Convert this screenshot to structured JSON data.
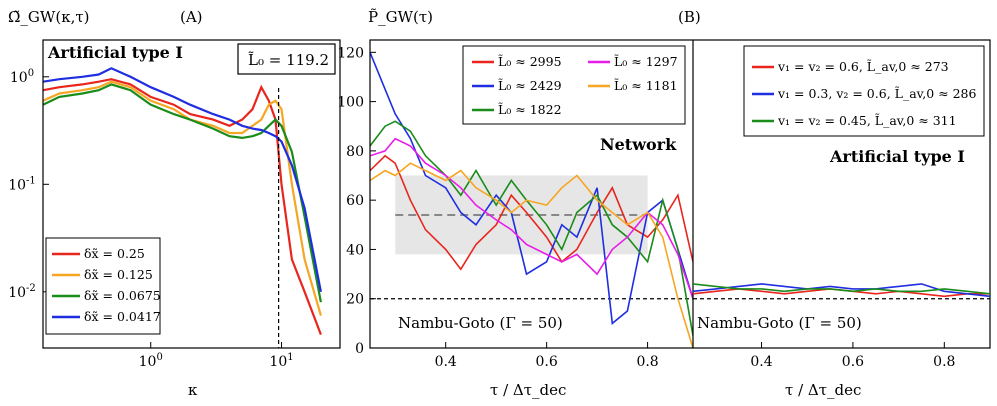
{
  "chart_data": [
    {
      "type": "line",
      "panel_label": "(A)",
      "ylabel": "Ω̃_GW(κ,τ)",
      "xlabel": "κ",
      "title_box": "L̃₀ = 119.2",
      "annotation": "Artificial type I",
      "xscale": "log",
      "yscale": "log",
      "xlim": [
        0.15,
        28
      ],
      "ylim": [
        0.003,
        2.2
      ],
      "x_ticks": [
        {
          "v": 1,
          "label": "10^0"
        },
        {
          "v": 10,
          "label": "10^1"
        }
      ],
      "y_ticks": [
        {
          "v": 0.01,
          "label": "10^-2"
        },
        {
          "v": 0.1,
          "label": "10^-1"
        },
        {
          "v": 1,
          "label": "10^0"
        }
      ],
      "vline_x": 9.5,
      "series": [
        {
          "name": "δx̃ = 0.25",
          "color": "#e8261e",
          "x": [
            0.15,
            0.2,
            0.3,
            0.4,
            0.5,
            0.7,
            1,
            1.5,
            2,
            3,
            4,
            5,
            6,
            7,
            8,
            9,
            10,
            12,
            15,
            20
          ],
          "envelope_top": [
            0.75,
            0.8,
            0.85,
            0.9,
            0.95,
            0.85,
            0.65,
            0.55,
            0.45,
            0.4,
            0.35,
            0.4,
            0.5,
            0.8,
            0.6,
            0.4,
            0.1,
            0.02,
            0.01,
            0.004
          ],
          "values": [
            0.75,
            0.8,
            0.85,
            0.9,
            0.95,
            0.85,
            0.65,
            0.55,
            0.45,
            0.4,
            0.35,
            0.4,
            0.5,
            0.8,
            0.6,
            0.4,
            0.1,
            0.02,
            0.01,
            0.004
          ]
        },
        {
          "name": "δx̃ = 0.125",
          "color": "#f5a623",
          "x": [
            0.15,
            0.2,
            0.3,
            0.4,
            0.5,
            0.7,
            1,
            1.5,
            2,
            3,
            4,
            5,
            6,
            7,
            8,
            9,
            10,
            12,
            15,
            20
          ],
          "values": [
            0.6,
            0.7,
            0.75,
            0.8,
            0.9,
            0.8,
            0.6,
            0.5,
            0.4,
            0.35,
            0.3,
            0.3,
            0.35,
            0.4,
            0.55,
            0.6,
            0.5,
            0.1,
            0.02,
            0.006
          ]
        },
        {
          "name": "δx̃ = 0.0675",
          "color": "#1a8c1a",
          "x": [
            0.15,
            0.2,
            0.3,
            0.4,
            0.5,
            0.7,
            1,
            1.5,
            2,
            3,
            4,
            5,
            6,
            7,
            8,
            9,
            10,
            12,
            15,
            20
          ],
          "values": [
            0.55,
            0.65,
            0.7,
            0.75,
            0.85,
            0.75,
            0.55,
            0.45,
            0.4,
            0.33,
            0.28,
            0.27,
            0.28,
            0.3,
            0.35,
            0.4,
            0.35,
            0.2,
            0.05,
            0.008
          ]
        },
        {
          "name": "δx̃ = 0.0417",
          "color": "#1f2ee0",
          "x": [
            0.15,
            0.2,
            0.3,
            0.4,
            0.5,
            0.7,
            1,
            1.5,
            2,
            3,
            4,
            5,
            6,
            7,
            8,
            9,
            10,
            12,
            15,
            20
          ],
          "values": [
            0.9,
            0.95,
            1.0,
            1.05,
            1.2,
            1.0,
            0.8,
            0.65,
            0.55,
            0.45,
            0.4,
            0.35,
            0.33,
            0.32,
            0.3,
            0.28,
            0.25,
            0.15,
            0.06,
            0.01
          ]
        }
      ]
    },
    {
      "type": "line",
      "panel_label": "(B)",
      "ylabel": "P̃_GW(τ)",
      "xlabel": "τ / Δτ_dec",
      "annotation": "Network",
      "xlim": [
        0.25,
        0.89
      ],
      "ylim": [
        0,
        125
      ],
      "x_ticks": [
        0.4,
        0.6,
        0.8
      ],
      "y_ticks": [
        0,
        20,
        40,
        60,
        80,
        100,
        120
      ],
      "hline": {
        "y": 20,
        "label": "Nambu-Goto (Γ = 50)"
      },
      "band": {
        "x": [
          0.3,
          0.8
        ],
        "y": [
          38,
          70
        ],
        "mean": 54
      },
      "series": [
        {
          "name": "L̃₀ ≈ 2995",
          "color": "#e8261e",
          "x": [
            0.25,
            0.28,
            0.3,
            0.33,
            0.36,
            0.4,
            0.43,
            0.46,
            0.5,
            0.53,
            0.56,
            0.6,
            0.63,
            0.66,
            0.7,
            0.73,
            0.76,
            0.8,
            0.83,
            0.86,
            0.89
          ],
          "values": [
            72,
            78,
            75,
            60,
            48,
            40,
            32,
            42,
            50,
            62,
            55,
            45,
            35,
            40,
            55,
            65,
            50,
            45,
            52,
            62,
            35
          ]
        },
        {
          "name": "L̃₀ ≈ 2429",
          "color": "#1f2ee0",
          "x": [
            0.25,
            0.28,
            0.3,
            0.33,
            0.36,
            0.4,
            0.43,
            0.46,
            0.5,
            0.53,
            0.56,
            0.6,
            0.63,
            0.66,
            0.7,
            0.73,
            0.76,
            0.8,
            0.83,
            0.86,
            0.89
          ],
          "values": [
            120,
            105,
            95,
            85,
            70,
            65,
            55,
            50,
            62,
            55,
            30,
            35,
            50,
            45,
            65,
            10,
            15,
            55,
            60,
            40,
            20
          ]
        },
        {
          "name": "L̃₀ ≈ 1822",
          "color": "#1a8c1a",
          "x": [
            0.25,
            0.28,
            0.3,
            0.33,
            0.36,
            0.4,
            0.43,
            0.46,
            0.5,
            0.53,
            0.56,
            0.6,
            0.63,
            0.66,
            0.7,
            0.73,
            0.76,
            0.8,
            0.83,
            0.86,
            0.89
          ],
          "values": [
            82,
            90,
            92,
            88,
            78,
            70,
            62,
            72,
            58,
            68,
            60,
            50,
            40,
            55,
            62,
            50,
            45,
            35,
            60,
            40,
            5
          ]
        },
        {
          "name": "L̃₀ ≈ 1297",
          "color": "#e81ee8",
          "x": [
            0.25,
            0.28,
            0.3,
            0.33,
            0.36,
            0.4,
            0.43,
            0.46,
            0.5,
            0.53,
            0.56,
            0.6,
            0.63,
            0.66,
            0.7,
            0.73,
            0.76,
            0.8,
            0.83,
            0.86,
            0.89
          ],
          "values": [
            78,
            80,
            85,
            82,
            75,
            70,
            65,
            58,
            52,
            48,
            42,
            38,
            35,
            38,
            30,
            40,
            45,
            55,
            50,
            38,
            20
          ]
        },
        {
          "name": "L̃₀ ≈ 1181",
          "color": "#f5a623",
          "x": [
            0.25,
            0.28,
            0.3,
            0.33,
            0.36,
            0.4,
            0.43,
            0.46,
            0.5,
            0.53,
            0.56,
            0.6,
            0.63,
            0.66,
            0.7,
            0.73,
            0.76,
            0.8,
            0.83,
            0.86,
            0.89
          ],
          "values": [
            68,
            72,
            70,
            75,
            72,
            68,
            72,
            65,
            60,
            55,
            60,
            58,
            65,
            70,
            60,
            55,
            50,
            55,
            45,
            20,
            0
          ]
        }
      ]
    },
    {
      "type": "line",
      "annotation": "Artificial type I",
      "xlabel": "τ / Δτ_dec",
      "xlim": [
        0.25,
        0.9
      ],
      "ylim": [
        0,
        125
      ],
      "x_ticks": [
        0.4,
        0.6,
        0.8
      ],
      "hline": {
        "y": 20,
        "label": "Nambu-Goto (Γ = 50)"
      },
      "series": [
        {
          "name": "v₁ = v₂ = 0.6, L̃_av,0 ≈ 273",
          "color": "#e8261e",
          "x": [
            0.25,
            0.3,
            0.35,
            0.4,
            0.45,
            0.5,
            0.55,
            0.6,
            0.65,
            0.7,
            0.75,
            0.8,
            0.85,
            0.9
          ],
          "values": [
            22,
            23,
            24,
            23,
            22,
            23,
            24,
            23,
            22,
            23,
            22,
            21,
            22,
            22
          ]
        },
        {
          "name": "v₁ = 0.3, v₂ = 0.6, L̃_av,0 ≈ 286",
          "color": "#1f2ee0",
          "x": [
            0.25,
            0.3,
            0.35,
            0.4,
            0.45,
            0.5,
            0.55,
            0.6,
            0.65,
            0.7,
            0.75,
            0.8,
            0.85,
            0.9
          ],
          "values": [
            23,
            24,
            25,
            26,
            25,
            24,
            25,
            24,
            24,
            25,
            26,
            23,
            22,
            21
          ]
        },
        {
          "name": "v₁ = v₂ = 0.45, L̃_av,0 ≈ 311",
          "color": "#1a8c1a",
          "x": [
            0.25,
            0.3,
            0.35,
            0.4,
            0.45,
            0.5,
            0.55,
            0.6,
            0.65,
            0.7,
            0.75,
            0.8,
            0.85,
            0.9
          ],
          "values": [
            26,
            25,
            24,
            24,
            23,
            24,
            24,
            23,
            24,
            23,
            23,
            24,
            23,
            22
          ]
        }
      ]
    }
  ]
}
